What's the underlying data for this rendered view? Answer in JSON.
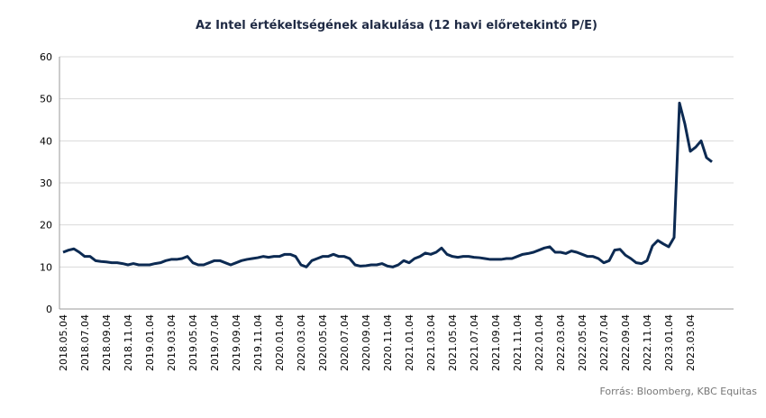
{
  "chart_data": {
    "type": "line",
    "title": "Az Intel értékeltségének alakulása (12 havi előretekintő P/E)",
    "annotation": "Forrás: Bloomberg, KBC Equitas",
    "color": "#0c2a52",
    "grid": true,
    "ylim": [
      0,
      60
    ],
    "yticks": [
      0,
      10,
      20,
      30,
      40,
      50,
      60
    ],
    "categories": [
      "2018.05.04",
      null,
      null,
      null,
      "2018.07.04",
      null,
      null,
      null,
      "2018.09.04",
      null,
      null,
      null,
      "2018.11.04",
      null,
      null,
      null,
      "2019.01.04",
      null,
      null,
      null,
      "2019.03.04",
      null,
      null,
      null,
      "2019.05.04",
      null,
      null,
      null,
      "2019.07.04",
      null,
      null,
      null,
      "2019.09.04",
      null,
      null,
      null,
      "2019.11.04",
      null,
      null,
      null,
      "2020.01.04",
      null,
      null,
      null,
      "2020.03.04",
      null,
      null,
      null,
      "2020.05.04",
      null,
      null,
      null,
      "2020.07.04",
      null,
      null,
      null,
      "2020.09.04",
      null,
      null,
      null,
      "2020.11.04",
      null,
      null,
      null,
      "2021.01.04",
      null,
      null,
      null,
      "2021.03.04",
      null,
      null,
      null,
      "2021.05.04",
      null,
      null,
      null,
      "2021.07.04",
      null,
      null,
      null,
      "2021.09.04",
      null,
      null,
      null,
      "2021.11.04",
      null,
      null,
      null,
      "2022.01.04",
      null,
      null,
      null,
      "2022.03.04",
      null,
      null,
      null,
      "2022.05.04",
      null,
      null,
      null,
      "2022.07.04",
      null,
      null,
      null,
      "2022.09.04",
      null,
      null,
      null,
      "2022.11.04",
      null,
      null,
      null,
      "2023.01.04",
      null,
      null,
      null,
      "2023.03.04",
      null,
      null,
      null,
      null
    ],
    "values": [
      13.5,
      14,
      14.3,
      13.5,
      12.5,
      12.5,
      11.5,
      11.3,
      11.2,
      11,
      11,
      10.8,
      10.5,
      10.8,
      10.5,
      10.5,
      10.5,
      10.8,
      11,
      11.5,
      11.8,
      11.8,
      12,
      12.5,
      11,
      10.5,
      10.5,
      11,
      11.5,
      11.5,
      11,
      10.5,
      11,
      11.5,
      11.8,
      12,
      12.2,
      12.5,
      12.3,
      12.5,
      12.5,
      13,
      13,
      12.5,
      10.5,
      10,
      11.5,
      12,
      12.5,
      12.5,
      13,
      12.5,
      12.5,
      12,
      10.5,
      10.2,
      10.3,
      10.5,
      10.5,
      10.8,
      10.2,
      10,
      10.5,
      11.5,
      11,
      12,
      12.5,
      13.3,
      13,
      13.5,
      14.5,
      13,
      12.5,
      12.3,
      12.5,
      12.5,
      12.3,
      12.2,
      12,
      11.8,
      11.8,
      11.8,
      12,
      12,
      12.5,
      13,
      13.2,
      13.5,
      14,
      14.5,
      14.8,
      13.5,
      13.5,
      13.2,
      13.8,
      13.5,
      13,
      12.5,
      12.5,
      12,
      11,
      11.5,
      14,
      14.2,
      12.8,
      12,
      11,
      10.8,
      11.5,
      15,
      16.3,
      15.5,
      14.8,
      17,
      49,
      44,
      37.5,
      38.5,
      40,
      36,
      35
    ]
  }
}
